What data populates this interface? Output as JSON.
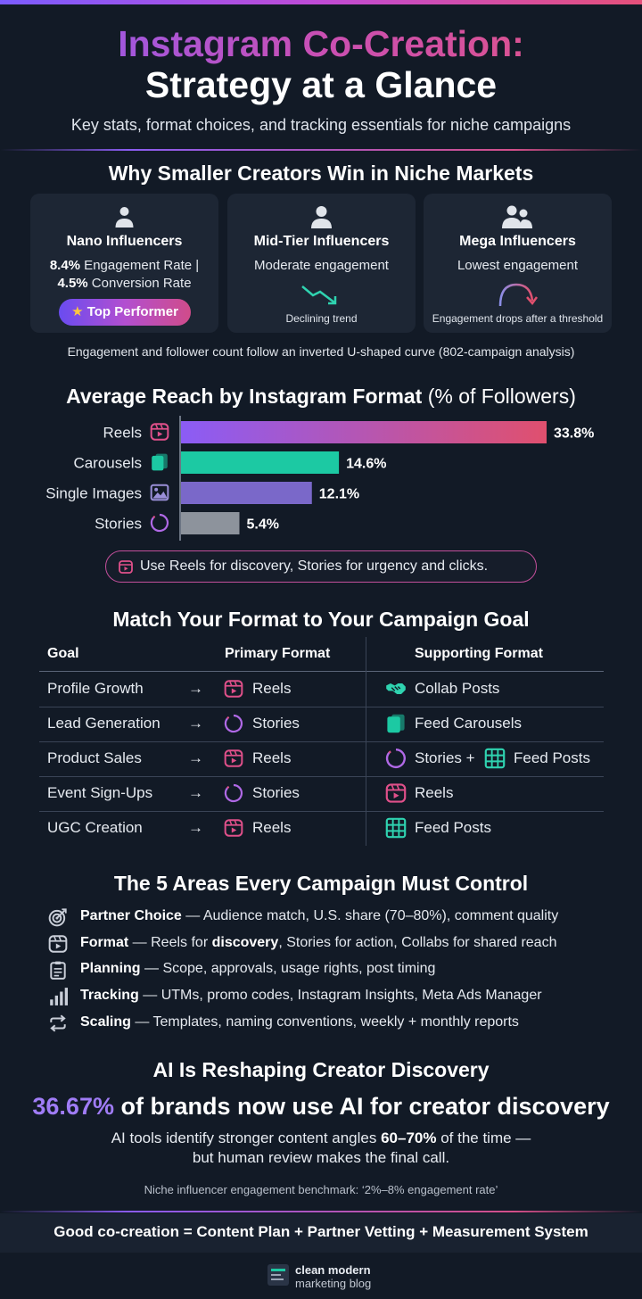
{
  "title_line1": "Instagram Co-Creation:",
  "title_line2": "Strategy at a Glance",
  "subtitle": "Key stats, format choices, and tracking essentials for niche campaigns",
  "section1": {
    "title": "Why Smaller Creators Win in Niche Markets",
    "cards": [
      {
        "title": "Nano Influencers",
        "icon": "person-icon",
        "stat1_value": "8.4%",
        "stat1_label": " Engagement Rate |",
        "stat2_value": "4.5%",
        "stat2_label": " Conversion Rate",
        "badge": "Top Performer",
        "badge_icon": "star-icon"
      },
      {
        "title": "Mid-Tier Influencers",
        "icon": "person-icon",
        "line": "Moderate engagement",
        "footnote": "Declining trend",
        "trend_icon": "declining-trend-icon"
      },
      {
        "title": "Mega Influencers",
        "icon": "group-icon",
        "line": "Lowest engagement",
        "footnote": "Engagement drops after a threshold",
        "trend_icon": "curved-arrow-icon"
      }
    ],
    "note": "Engagement and follower count follow an inverted U-shaped curve (802-campaign analysis)"
  },
  "section2": {
    "title_bold": "Average Reach by Instagram Format",
    "title_light": " (% of Followers)",
    "tip": "Use Reels for discovery, Stories for urgency and clicks."
  },
  "chart_data": {
    "type": "bar",
    "orientation": "horizontal",
    "title": "Average Reach by Instagram Format (% of Followers)",
    "categories": [
      "Reels",
      "Carousels",
      "Single Images",
      "Stories"
    ],
    "values": [
      33.8,
      14.6,
      12.1,
      5.4
    ],
    "value_labels": [
      "33.8%",
      "14.6%",
      "12.1%",
      "5.4%"
    ],
    "icons": [
      "reels-icon",
      "carousel-icon",
      "image-icon",
      "stories-icon"
    ],
    "colors": [
      "#8b5cf6",
      "#1cc9a3",
      "#7a68c9",
      "#8d939c"
    ],
    "reels_gradient_end": "#e0506e",
    "xlim": [
      0,
      33.8
    ],
    "grid": false
  },
  "section3": {
    "title": "Match Your Format to Your Campaign Goal",
    "headers": [
      "Goal",
      "Primary Format",
      "Supporting Format"
    ],
    "arrow": "→",
    "rows": [
      {
        "goal": "Profile Growth",
        "primary": "Reels",
        "primary_icon": "reels-icon",
        "supporting": [
          "Collab Posts"
        ],
        "supporting_icons": [
          "handshake-icon"
        ]
      },
      {
        "goal": "Lead Generation",
        "primary": "Stories",
        "primary_icon": "stories-icon",
        "supporting": [
          "Feed Carousels"
        ],
        "supporting_icons": [
          "carousel-icon"
        ]
      },
      {
        "goal": "Product Sales",
        "primary": "Reels",
        "primary_icon": "reels-icon",
        "supporting": [
          "Stories +",
          "Feed Posts"
        ],
        "supporting_icons": [
          "stories-icon",
          "grid-icon"
        ]
      },
      {
        "goal": "Event Sign-Ups",
        "primary": "Stories",
        "primary_icon": "stories-icon",
        "supporting": [
          "Reels"
        ],
        "supporting_icons": [
          "reels-icon"
        ]
      },
      {
        "goal": "UGC Creation",
        "primary": "Reels",
        "primary_icon": "reels-icon",
        "supporting": [
          "Feed Posts"
        ],
        "supporting_icons": [
          "grid-icon"
        ]
      }
    ]
  },
  "section4": {
    "title": "The 5 Areas Every Campaign Must Control",
    "items": [
      {
        "label": "Partner Choice",
        "pre": " — Audience match, U.S. share (70–80%), comment quality",
        "icon": "target-icon"
      },
      {
        "label": "Format",
        "pre": " — Reels for ",
        "bold": "discovery",
        "post": ", Stories for action, Collabs for shared reach",
        "icon": "reels-icon"
      },
      {
        "label": "Planning",
        "pre": " — Scope, approvals, usage rights, post timing",
        "icon": "clipboard-icon"
      },
      {
        "label": "Tracking",
        "pre": " — UTMs, promo codes, Instagram Insights, Meta Ads Manager",
        "icon": "bar-chart-icon"
      },
      {
        "label": "Scaling",
        "pre": " — Templates, naming conventions, weekly + monthly reports",
        "icon": "repeat-icon"
      }
    ]
  },
  "section5": {
    "title": "AI Is Reshaping Creator Discovery",
    "stat": "36.67%",
    "stat_text": " of brands now use AI for creator discovery",
    "line1_pre": "AI tools identify stronger content angles ",
    "line1_bold": "60–70%",
    "line1_post": " of the time —",
    "line2": "but human review makes the final call.",
    "benchmark": "Niche influencer engagement benchmark: ‘2%–8% engagement rate’"
  },
  "footer": {
    "text": "Good co-creation = Content Plan + Partner Vetting + Measurement System",
    "logo_line1": "clean modern",
    "logo_line2": "marketing blog",
    "logo_icon": "blog-logo-icon"
  },
  "colors": {
    "background": "#121a26",
    "card": "#1d2634",
    "accent_purple": "#8b5cf6",
    "accent_pink": "#e0506e",
    "accent_teal": "#1cc9a3"
  }
}
